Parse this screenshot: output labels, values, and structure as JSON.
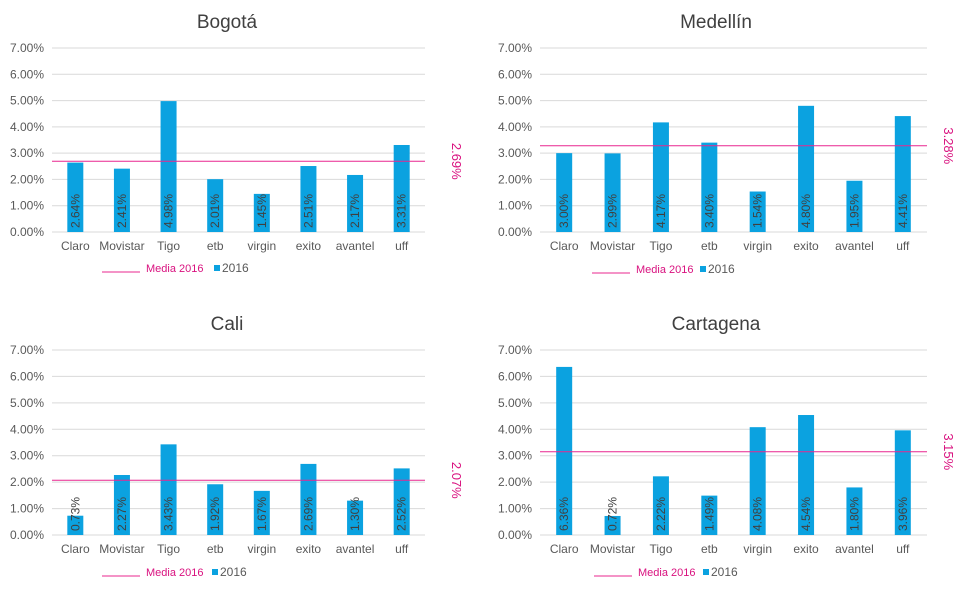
{
  "chart_data": [
    {
      "type": "bar",
      "title": "Bogotá",
      "categories": [
        "Claro",
        "Movistar",
        "Tigo",
        "etb",
        "virgin",
        "exito",
        "avantel",
        "uff"
      ],
      "series": [
        {
          "name": "2016",
          "values": [
            2.64,
            2.41,
            4.98,
            2.01,
            1.45,
            2.51,
            2.17,
            3.31
          ]
        }
      ],
      "value_labels": [
        "2.64%",
        "2.41%",
        "4.98%",
        "2.01%",
        "1.45%",
        "2.51%",
        "2.17%",
        "3.31%"
      ],
      "mean": {
        "name": "Media 2016",
        "value": 2.69,
        "label": "2.69%"
      },
      "yticks": [
        "0.00%",
        "1.00%",
        "2.00%",
        "3.00%",
        "4.00%",
        "5.00%",
        "6.00%",
        "7.00%"
      ],
      "ylim": [
        0,
        7
      ],
      "legend": [
        "Media 2016",
        "2016"
      ]
    },
    {
      "type": "bar",
      "title": "Medellín",
      "categories": [
        "Claro",
        "Movistar",
        "Tigo",
        "etb",
        "virgin",
        "exito",
        "avantel",
        "uff"
      ],
      "series": [
        {
          "name": "2016",
          "values": [
            3.0,
            2.99,
            4.17,
            3.4,
            1.54,
            4.8,
            1.95,
            4.41
          ]
        }
      ],
      "value_labels": [
        "3.00%",
        "2.99%",
        "4.17%",
        "3.40%",
        "1.54%",
        "4.80%",
        "1.95%",
        "4.41%"
      ],
      "mean": {
        "name": "Media 2016",
        "value": 3.28,
        "label": "3.28%"
      },
      "yticks": [
        "0.00%",
        "1.00%",
        "2.00%",
        "3.00%",
        "4.00%",
        "5.00%",
        "6.00%",
        "7.00%"
      ],
      "ylim": [
        0,
        7
      ],
      "legend": [
        "Media 2016",
        "2016"
      ]
    },
    {
      "type": "bar",
      "title": "Cali",
      "categories": [
        "Claro",
        "Movistar",
        "Tigo",
        "etb",
        "virgin",
        "exito",
        "avantel",
        "uff"
      ],
      "series": [
        {
          "name": "2016",
          "values": [
            0.73,
            2.27,
            3.43,
            1.92,
            1.67,
            2.69,
            1.3,
            2.52
          ]
        }
      ],
      "value_labels": [
        "0.73%",
        "2.27%",
        "3.43%",
        "1.92%",
        "1.67%",
        "2.69%",
        "1.30%",
        "2.52%"
      ],
      "mean": {
        "name": "Media 2016",
        "value": 2.07,
        "label": "2.07%"
      },
      "yticks": [
        "0.00%",
        "1.00%",
        "2.00%",
        "3.00%",
        "4.00%",
        "5.00%",
        "6.00%",
        "7.00%"
      ],
      "ylim": [
        0,
        7
      ],
      "legend": [
        "Media 2016",
        "2016"
      ]
    },
    {
      "type": "bar",
      "title": "Cartagena",
      "categories": [
        "Claro",
        "Movistar",
        "Tigo",
        "etb",
        "virgin",
        "exito",
        "avantel",
        "uff"
      ],
      "series": [
        {
          "name": "2016",
          "values": [
            6.36,
            0.72,
            2.22,
            1.49,
            4.08,
            4.54,
            1.8,
            3.96
          ]
        }
      ],
      "value_labels": [
        "6.36%",
        "0.72%",
        "2.22%",
        "1.49%",
        "4.08%",
        "4.54%",
        "1.80%",
        "3.96%"
      ],
      "mean": {
        "name": "Media 2016",
        "value": 3.15,
        "label": "3.15%"
      },
      "yticks": [
        "0.00%",
        "1.00%",
        "2.00%",
        "3.00%",
        "4.00%",
        "5.00%",
        "6.00%",
        "7.00%"
      ],
      "ylim": [
        0,
        7
      ],
      "legend": [
        "Media 2016",
        "2016"
      ]
    }
  ],
  "colors": {
    "bar": "#0ba2e0",
    "mean_line": "#e8278f",
    "mean_label": "#d9117f",
    "grid": "#d9d9d9",
    "axis_text": "#595959",
    "title": "#404040",
    "data_label": "#404040"
  }
}
